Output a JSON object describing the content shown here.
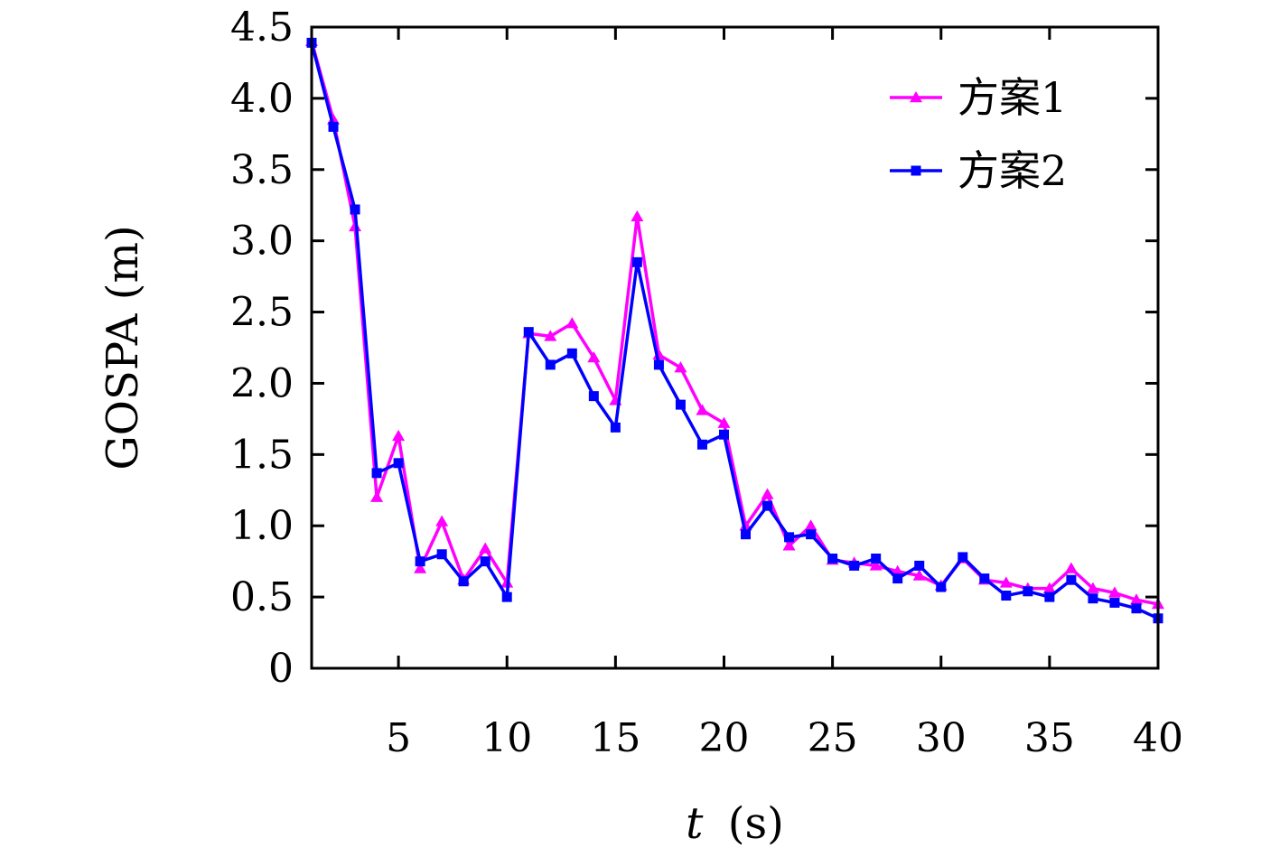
{
  "chart_data": {
    "type": "line",
    "xlabel_var": "t",
    "xlabel_unit": "(s)",
    "ylabel": "GOSPA (m)",
    "xlim": [
      1,
      40
    ],
    "ylim": [
      0,
      4.5
    ],
    "x_ticks": [
      5,
      10,
      15,
      20,
      25,
      30,
      35,
      40
    ],
    "y_ticks": [
      0,
      0.5,
      1.0,
      1.5,
      2.0,
      2.5,
      3.0,
      3.5,
      4.0,
      4.5
    ],
    "y_tick_labels": [
      "0",
      "0.5",
      "1.0",
      "1.5",
      "2.0",
      "2.5",
      "3.0",
      "3.5",
      "4.0",
      "4.5"
    ],
    "legend_position": "top-right",
    "x": [
      1,
      2,
      3,
      4,
      5,
      6,
      7,
      8,
      9,
      10,
      11,
      12,
      13,
      14,
      15,
      16,
      17,
      18,
      19,
      20,
      21,
      22,
      23,
      24,
      25,
      26,
      27,
      28,
      29,
      30,
      31,
      32,
      33,
      34,
      35,
      36,
      37,
      38,
      39,
      40
    ],
    "series": [
      {
        "name": "方案1",
        "color": "#ff00ff",
        "marker": "triangle",
        "values": [
          4.4,
          3.85,
          3.1,
          1.2,
          1.63,
          0.7,
          1.03,
          0.62,
          0.84,
          0.6,
          2.35,
          2.33,
          2.42,
          2.18,
          1.88,
          3.17,
          2.2,
          2.11,
          1.81,
          1.72,
          1.0,
          1.22,
          0.86,
          1.0,
          0.76,
          0.74,
          0.72,
          0.68,
          0.65,
          0.58,
          0.77,
          0.62,
          0.6,
          0.56,
          0.56,
          0.7,
          0.56,
          0.53,
          0.48,
          0.45
        ]
      },
      {
        "name": "方案2",
        "color": "#0000ff",
        "marker": "square",
        "values": [
          4.39,
          3.8,
          3.22,
          1.37,
          1.44,
          0.75,
          0.8,
          0.61,
          0.75,
          0.5,
          2.36,
          2.13,
          2.21,
          1.91,
          1.69,
          2.85,
          2.13,
          1.85,
          1.57,
          1.64,
          0.94,
          1.14,
          0.92,
          0.94,
          0.77,
          0.72,
          0.77,
          0.63,
          0.72,
          0.57,
          0.78,
          0.63,
          0.51,
          0.54,
          0.5,
          0.62,
          0.49,
          0.46,
          0.42,
          0.35
        ]
      }
    ]
  }
}
